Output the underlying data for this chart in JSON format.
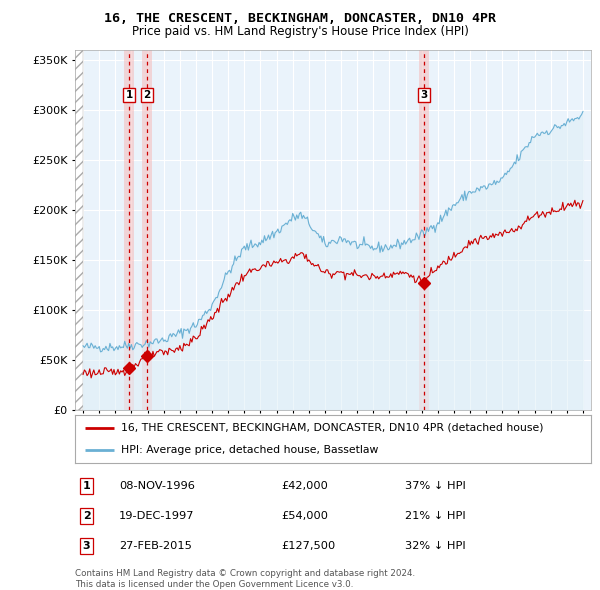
{
  "title": "16, THE CRESCENT, BECKINGHAM, DONCASTER, DN10 4PR",
  "subtitle": "Price paid vs. HM Land Registry's House Price Index (HPI)",
  "legend_line1": "16, THE CRESCENT, BECKINGHAM, DONCASTER, DN10 4PR (detached house)",
  "legend_line2": "HPI: Average price, detached house, Bassetlaw",
  "footnote": "Contains HM Land Registry data © Crown copyright and database right 2024.\nThis data is licensed under the Open Government Licence v3.0.",
  "transactions": [
    {
      "id": 1,
      "date": "08-NOV-1996",
      "price": 42000,
      "pct": "37%",
      "direction": "↓",
      "x_year": 1996.86
    },
    {
      "id": 2,
      "date": "19-DEC-1997",
      "price": 54000,
      "pct": "21%",
      "direction": "↓",
      "x_year": 1997.96
    },
    {
      "id": 3,
      "date": "27-FEB-2015",
      "price": 127500,
      "pct": "32%",
      "direction": "↓",
      "x_year": 2015.15
    }
  ],
  "hpi_color": "#6ab0d4",
  "hpi_fill": "#ddeef7",
  "price_color": "#cc0000",
  "vline_color": "#cc0000",
  "vline_fill": "#f5c0c0",
  "dot_color": "#cc0000",
  "ylim": [
    0,
    360000
  ],
  "yticks": [
    0,
    50000,
    100000,
    150000,
    200000,
    250000,
    300000,
    350000
  ],
  "xlim": [
    1993.5,
    2025.5
  ],
  "hatch_xlim": [
    1993.5,
    1994.0
  ],
  "background_color": "#ffffff",
  "plot_bg": "#eaf3fb",
  "grid_color": "#ffffff",
  "hpi_anchors": [
    [
      1994.0,
      63000
    ],
    [
      1995.0,
      63000
    ],
    [
      1996.0,
      63000
    ],
    [
      1997.0,
      65000
    ],
    [
      1998.0,
      67000
    ],
    [
      1999.0,
      70000
    ],
    [
      2000.0,
      77000
    ],
    [
      2001.0,
      85000
    ],
    [
      2002.0,
      105000
    ],
    [
      2003.0,
      138000
    ],
    [
      2004.0,
      162000
    ],
    [
      2005.0,
      168000
    ],
    [
      2006.0,
      178000
    ],
    [
      2007.0,
      192000
    ],
    [
      2007.5,
      195000
    ],
    [
      2008.0,
      187000
    ],
    [
      2009.0,
      165000
    ],
    [
      2010.0,
      172000
    ],
    [
      2011.0,
      165000
    ],
    [
      2012.0,
      162000
    ],
    [
      2013.0,
      163000
    ],
    [
      2014.0,
      168000
    ],
    [
      2015.0,
      175000
    ],
    [
      2016.0,
      188000
    ],
    [
      2017.0,
      205000
    ],
    [
      2018.0,
      218000
    ],
    [
      2019.0,
      223000
    ],
    [
      2020.0,
      230000
    ],
    [
      2021.0,
      252000
    ],
    [
      2022.0,
      275000
    ],
    [
      2023.0,
      280000
    ],
    [
      2024.0,
      287000
    ],
    [
      2025.0,
      295000
    ]
  ],
  "price_anchors": [
    [
      1994.0,
      38000
    ],
    [
      1995.0,
      37000
    ],
    [
      1996.0,
      38000
    ],
    [
      1996.86,
      42000
    ],
    [
      1997.0,
      43000
    ],
    [
      1997.96,
      54000
    ],
    [
      1998.2,
      54000
    ],
    [
      1998.5,
      56000
    ],
    [
      1999.0,
      57000
    ],
    [
      2000.0,
      62000
    ],
    [
      2001.0,
      72000
    ],
    [
      2002.0,
      93000
    ],
    [
      2003.0,
      115000
    ],
    [
      2004.0,
      135000
    ],
    [
      2005.0,
      143000
    ],
    [
      2006.0,
      147000
    ],
    [
      2007.0,
      152000
    ],
    [
      2007.5,
      157000
    ],
    [
      2008.0,
      150000
    ],
    [
      2009.0,
      137000
    ],
    [
      2010.0,
      138000
    ],
    [
      2011.0,
      135000
    ],
    [
      2012.0,
      133000
    ],
    [
      2013.0,
      136000
    ],
    [
      2014.0,
      137000
    ],
    [
      2015.15,
      127500
    ],
    [
      2015.5,
      135000
    ],
    [
      2016.0,
      142000
    ],
    [
      2017.0,
      155000
    ],
    [
      2018.0,
      168000
    ],
    [
      2019.0,
      172000
    ],
    [
      2020.0,
      176000
    ],
    [
      2021.0,
      183000
    ],
    [
      2022.0,
      195000
    ],
    [
      2023.0,
      198000
    ],
    [
      2024.0,
      205000
    ],
    [
      2025.0,
      207000
    ]
  ]
}
